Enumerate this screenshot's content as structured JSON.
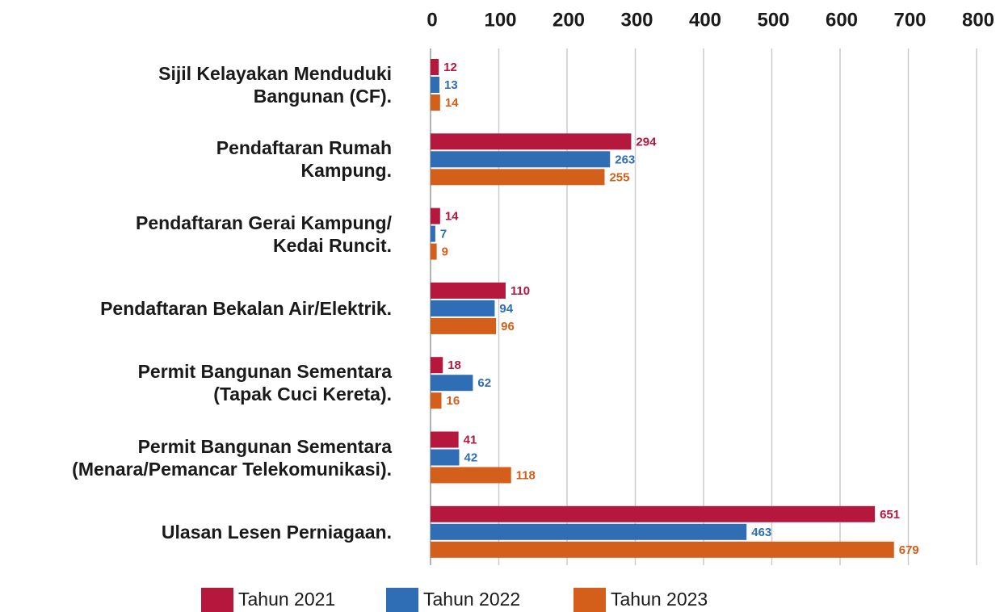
{
  "chart_data": {
    "type": "bar",
    "orientation": "horizontal",
    "categories": [
      "Sijil Kelayakan Menduduki\nBangunan (CF).",
      "Pendaftaran Rumah\nKampung.",
      "Pendaftaran Gerai Kampung/\nKedai Runcit.",
      "Pendaftaran Bekalan Air/Elektrik.",
      "Permit Bangunan Sementara\n(Tapak Cuci Kereta).",
      "Permit Bangunan Sementara\n(Menara/Pemancar Telekomunikasi).",
      "Ulasan Lesen Perniagaan."
    ],
    "series": [
      {
        "name": "Tahun 2021",
        "color": "#b5173d",
        "values": [
          12,
          294,
          14,
          110,
          18,
          41,
          651
        ]
      },
      {
        "name": "Tahun 2022",
        "color": "#2f6db5",
        "values": [
          13,
          263,
          7,
          94,
          62,
          42,
          463
        ]
      },
      {
        "name": "Tahun 2023",
        "color": "#d35f1a",
        "values": [
          14,
          255,
          9,
          96,
          16,
          118,
          679
        ]
      }
    ],
    "xlim": [
      0,
      800
    ],
    "xticks": [
      0,
      100,
      200,
      300,
      400,
      500,
      600,
      700,
      800
    ],
    "grid": true,
    "legend": "bottom"
  }
}
